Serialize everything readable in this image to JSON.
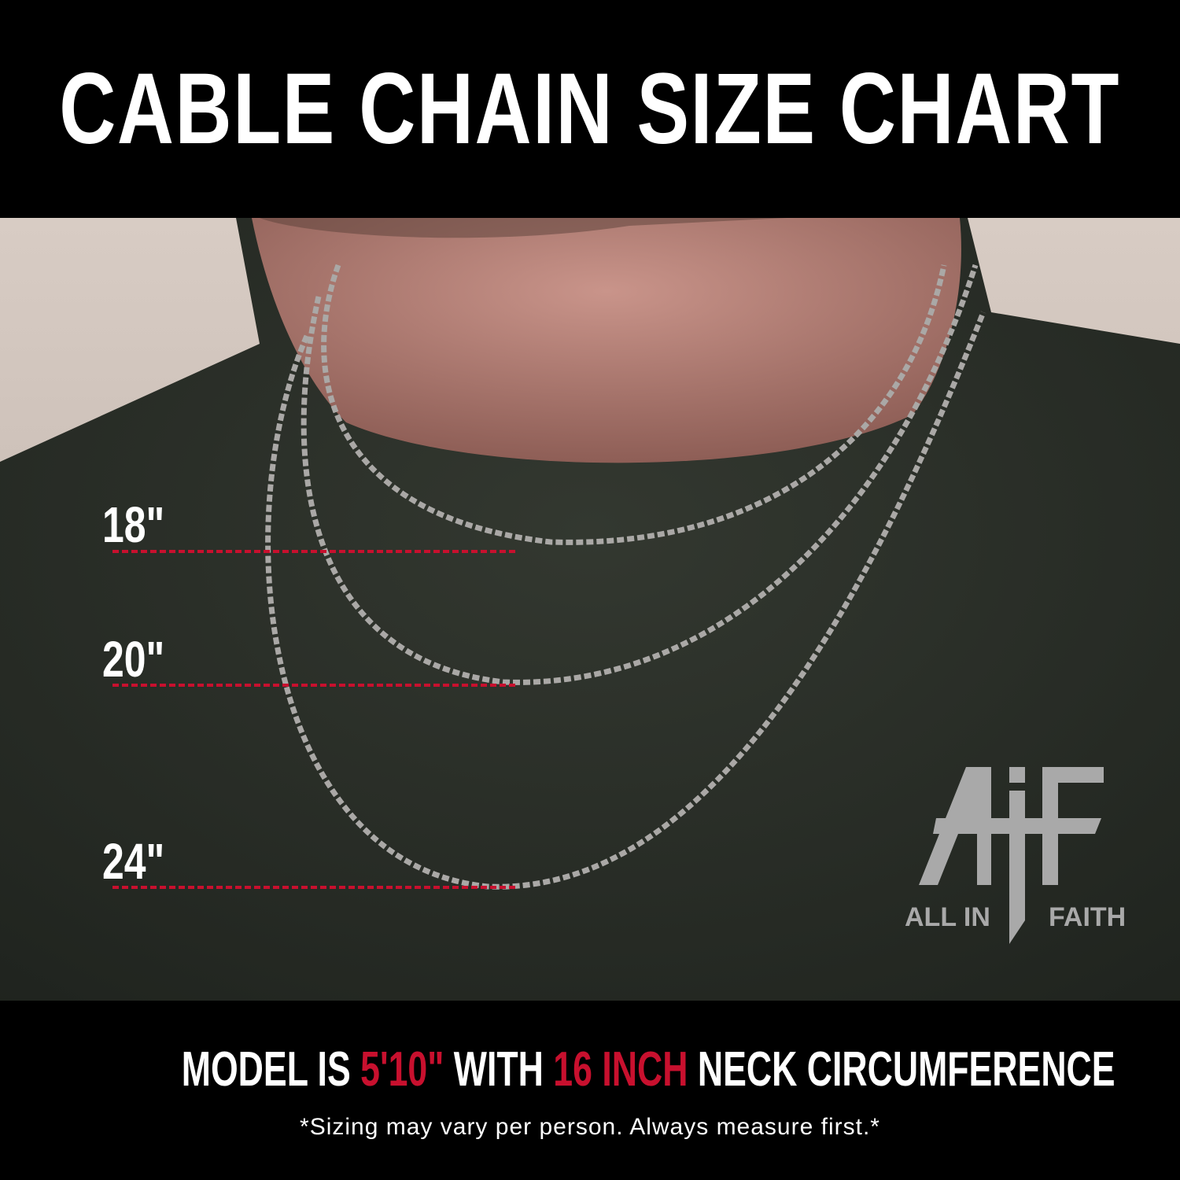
{
  "header": {
    "title": "CABLE CHAIN SIZE CHART"
  },
  "lengths": [
    {
      "label": "18\"",
      "color": "#c8102e"
    },
    {
      "label": "20\"",
      "color": "#c8102e"
    },
    {
      "label": "24\"",
      "color": "#c8102e"
    }
  ],
  "logo": {
    "mark": "AiF",
    "left_text": "ALL IN",
    "right_text": "FAITH"
  },
  "footer": {
    "part1": "MODEL IS ",
    "height": "5'10\"",
    "part2": " WITH ",
    "neck": "16 INCH",
    "part3": " NECK CIRCUMFERENCE",
    "note": "*Sizing may vary per person. Always measure first.*",
    "accent_color": "#c8102e"
  }
}
